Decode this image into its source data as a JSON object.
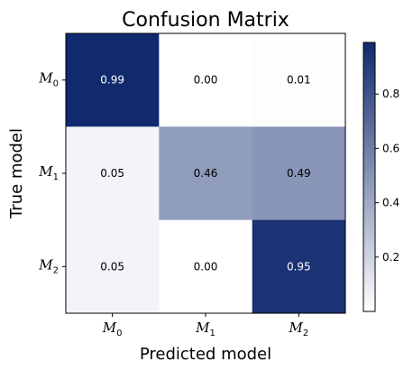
{
  "chart_data": {
    "type": "heatmap",
    "title": "Confusion Matrix",
    "xlabel": "Predicted model",
    "ylabel": "True model",
    "x_categories": [
      {
        "base": "M",
        "sub": "0"
      },
      {
        "base": "M",
        "sub": "1"
      },
      {
        "base": "M",
        "sub": "2"
      }
    ],
    "y_categories": [
      {
        "base": "M",
        "sub": "0"
      },
      {
        "base": "M",
        "sub": "1"
      },
      {
        "base": "M",
        "sub": "2"
      }
    ],
    "matrix": [
      [
        0.99,
        0.0,
        0.01
      ],
      [
        0.05,
        0.46,
        0.49
      ],
      [
        0.05,
        0.0,
        0.95
      ]
    ],
    "value_labels": [
      [
        "0.99",
        "0.00",
        "0.01"
      ],
      [
        "0.05",
        "0.46",
        "0.49"
      ],
      [
        "0.05",
        "0.00",
        "0.95"
      ]
    ],
    "colormap": {
      "low": "#ffffff",
      "high": "#112a6e"
    },
    "color_range": [
      0.0,
      0.99
    ],
    "colorbar_ticks": [
      "0.2",
      "0.4",
      "0.6",
      "0.8"
    ],
    "grid": false
  }
}
